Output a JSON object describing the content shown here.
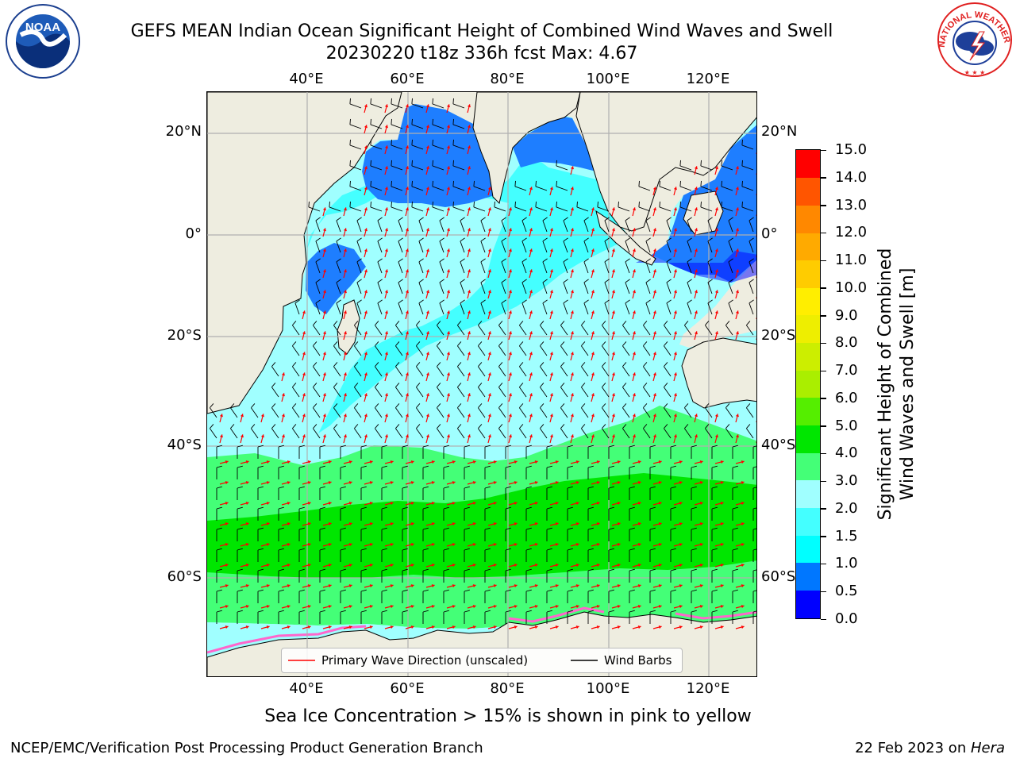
{
  "header": {
    "title_line1": "GEFS MEAN Indian Ocean Significant Height of Combined Wind Waves and Swell",
    "title_line2": "20230220 t18z 336h fcst   Max: 4.67",
    "noaa_logo_text": "NOAA",
    "noaa_logo_ring": "NATIONAL OCEANIC AND ATMOSPHERIC ADMINISTRATION · U.S. DEPARTMENT OF COMMERCE",
    "nws_logo_ring": "NATIONAL WEATHER SERVICE"
  },
  "map": {
    "lon_labels": [
      "40°E",
      "60°E",
      "80°E",
      "100°E",
      "120°E"
    ],
    "lat_labels": [
      "20°N",
      "0°",
      "20°S",
      "40°S",
      "60°S"
    ],
    "legend": {
      "wave_label": "Primary Wave Direction (unscaled)",
      "wind_label": "Wind Barbs",
      "wave_color": "#ff0000",
      "wind_color": "#000000"
    },
    "colors": {
      "land": "#eeede0",
      "grid": "#b0b0b0",
      "ice": "#ff66cc"
    }
  },
  "colorbar": {
    "label_line1": "Significant Height of Combined",
    "label_line2": "Wind Waves and Swell [m]",
    "ticks": [
      "15.0",
      "14.0",
      "13.0",
      "12.0",
      "11.0",
      "10.0",
      "9.0",
      "8.0",
      "7.0",
      "6.0",
      "5.0",
      "4.0",
      "3.0",
      "2.0",
      "1.5",
      "1.0",
      "0.5",
      "0.0"
    ],
    "colors": [
      "#0000ff",
      "#0077ff",
      "#00ffff",
      "#44ffff",
      "#a0ffff",
      "#44ff77",
      "#00e600",
      "#55ee00",
      "#aaee00",
      "#ccee00",
      "#eeee00",
      "#ffee00",
      "#ffcc00",
      "#ffaa00",
      "#ff8800",
      "#ff5500",
      "#ff0000"
    ]
  },
  "footer": {
    "note": "Sea Ice Concentration > 15% is shown in pink to yellow",
    "branch": "NCEP/EMC/Verification Post Processing Product Generation Branch",
    "date": "22 Feb 2023 on ",
    "host": "Hera"
  }
}
